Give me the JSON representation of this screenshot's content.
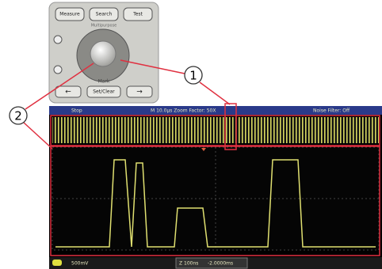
{
  "panel": {
    "buttons": [
      "Measure",
      "Search",
      "Test"
    ],
    "knob_label": "Multipurpose",
    "mark_label": "Mark",
    "mark_buttons": [
      "←",
      "Set/Clear",
      "→"
    ]
  },
  "callouts": [
    "1",
    "2"
  ],
  "screen": {
    "status": "Stop",
    "timebase": "M 10.0µs  Zoom Factor: 50X",
    "filter": "Noise Filter: Off",
    "channel_scale": "500mV",
    "zoom_scale": "Z 100ns",
    "position": "-2.0000ms"
  }
}
